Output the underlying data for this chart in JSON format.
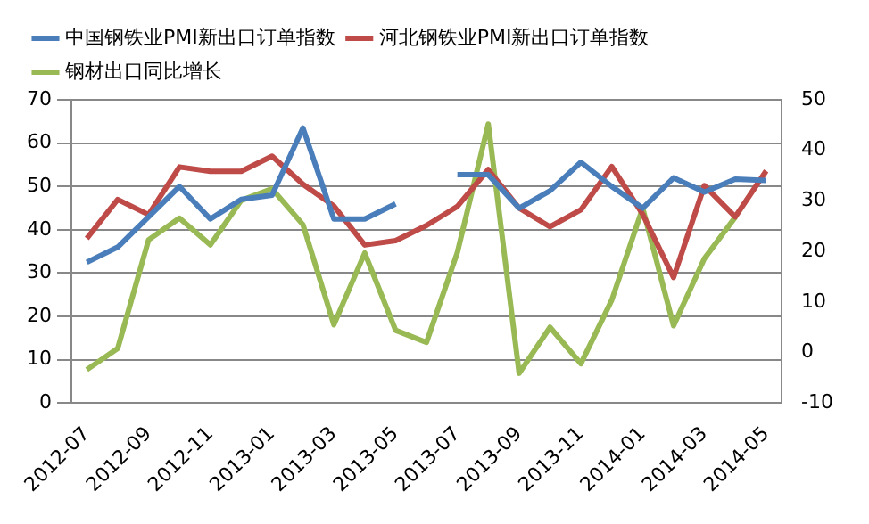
{
  "chart_data": {
    "type": "line",
    "categories": [
      "2012-07",
      null,
      "2012-09",
      null,
      "2012-11",
      null,
      "2013-01",
      null,
      "2013-03",
      null,
      "2013-05",
      null,
      "2013-07",
      null,
      "2013-09",
      null,
      "2013-11",
      null,
      "2014-01",
      null,
      "2014-03",
      null,
      "2014-05"
    ],
    "series": [
      {
        "name": "中国钢铁业PMI新出口订单指数",
        "color": "#4a7ebb",
        "values": [
          32.5,
          36,
          43,
          50,
          42.5,
          47,
          48,
          63.5,
          42.5,
          42.5,
          46,
          null,
          52.7,
          52.7,
          45,
          49,
          55.6,
          50,
          45,
          52,
          48.7,
          51.7,
          51.4
        ]
      },
      {
        "name": "河北钢铁业PMI新出口订单指数",
        "color": "#be4b48",
        "values": [
          38,
          47,
          43.5,
          54.5,
          53.5,
          53.5,
          57,
          50.5,
          45.5,
          36.5,
          37.5,
          41,
          45.4,
          53.9,
          45,
          40.7,
          44.6,
          54.6,
          43.6,
          29,
          50.2,
          43,
          53.6
        ]
      },
      {
        "name": "钢材出口同比增长",
        "color": "#98b954",
        "axis": "y2",
        "values": [
          -3.4,
          0.8,
          22.3,
          26.6,
          21.3,
          30.1,
          32.4,
          25.3,
          5.5,
          19.7,
          4.4,
          2,
          19.8,
          45.2,
          -4.1,
          5,
          -2.2,
          10.4,
          28.6,
          5.3,
          18.6,
          26.8,
          null
        ]
      }
    ],
    "ylim": [
      0,
      70
    ],
    "yticks": [
      0,
      10,
      20,
      30,
      40,
      50,
      60,
      70
    ],
    "y2lim": [
      -10,
      50
    ],
    "y2ticks": [
      -10,
      0,
      10,
      20,
      30,
      40,
      50
    ],
    "grid": "y",
    "legend": "top",
    "marker": "none",
    "line_style": "solid"
  }
}
